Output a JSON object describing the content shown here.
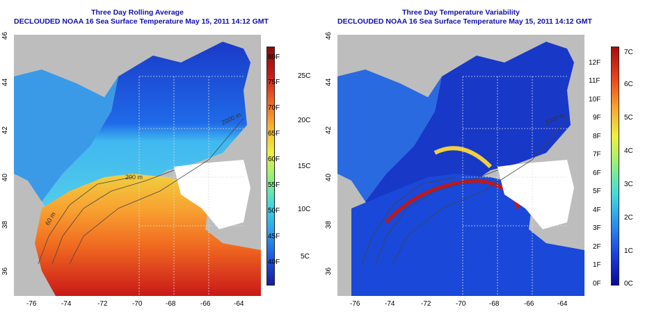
{
  "left_panel": {
    "title_line1": "Three Day Rolling Average",
    "title_line2": "DECLOUDED NOAA 16 Sea Surface Temperature May 15, 2011 14:12 GMT",
    "colorbar_f": [
      "40F",
      "45F",
      "50F",
      "55F",
      "60F",
      "65F",
      "70F",
      "75F",
      "80F"
    ],
    "colorbar_c": [
      "5C",
      "10C",
      "15C",
      "20C",
      "25C"
    ],
    "colormap": [
      "#1a1a9e",
      "#1f56e0",
      "#2aa0f0",
      "#3fd8e0",
      "#8ef080",
      "#f0f040",
      "#f8b030",
      "#f06020",
      "#c81818",
      "#8a0c0c"
    ]
  },
  "right_panel": {
    "title_line1": "Three Day Temperature Variability",
    "title_line2": "DECLOUDED NOAA 16 Sea Surface Temperature May 15, 2011 14:12 GMT",
    "colorbar_f": [
      "0F",
      "1F",
      "2F",
      "3F",
      "4F",
      "5F",
      "6F",
      "7F",
      "8F",
      "9F",
      "10F",
      "11F",
      "12F"
    ],
    "colorbar_c": [
      "0C",
      "1C",
      "2C",
      "3C",
      "4C",
      "5C",
      "6C",
      "7C"
    ],
    "colormap": [
      "#0a0a9a",
      "#1a3ee0",
      "#2a8cf0",
      "#3fd8e0",
      "#8ef080",
      "#f0f040",
      "#f8a030",
      "#e84018",
      "#a80c0c"
    ]
  },
  "axes": {
    "x_ticks": [
      "-76",
      "-74",
      "-72",
      "-70",
      "-68",
      "-66",
      "-64"
    ],
    "y_ticks": [
      "36",
      "38",
      "40",
      "42",
      "44",
      "46"
    ]
  },
  "contours": {
    "label_60m": "60 m",
    "label_200m": "200 m",
    "label_2000m": "2000 m"
  }
}
